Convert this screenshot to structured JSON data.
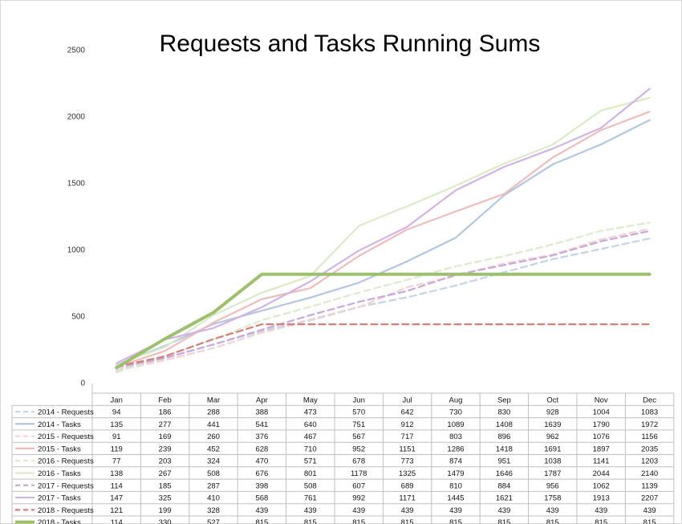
{
  "chart_data": {
    "type": "line",
    "title": "Requests and Tasks Running Sums",
    "categories": [
      "Jan",
      "Feb",
      "Mar",
      "Apr",
      "May",
      "Jun",
      "Jul",
      "Aug",
      "Sep",
      "Oct",
      "Nov",
      "Dec"
    ],
    "ylim": [
      0,
      2500
    ],
    "yticks": [
      0,
      500,
      1000,
      1500,
      2000,
      2500
    ],
    "grid": false,
    "legend": "data table below chart",
    "series": [
      {
        "name": "2014 - Requests",
        "values": [
          94,
          186,
          288,
          388,
          473,
          570,
          642,
          730,
          830,
          928,
          1004,
          1083
        ],
        "color": "#c5d3e6",
        "dash": true,
        "bold": false
      },
      {
        "name": "2014 - Tasks",
        "values": [
          135,
          277,
          441,
          541,
          640,
          751,
          912,
          1089,
          1408,
          1639,
          1790,
          1972
        ],
        "color": "#b4c6e0",
        "dash": false,
        "bold": false
      },
      {
        "name": "2015 - Requests",
        "values": [
          91,
          169,
          260,
          376,
          467,
          567,
          717,
          803,
          896,
          962,
          1076,
          1156
        ],
        "color": "#f2d2d2",
        "dash": true,
        "bold": false
      },
      {
        "name": "2015 - Tasks",
        "values": [
          119,
          239,
          452,
          628,
          710,
          952,
          1151,
          1286,
          1418,
          1691,
          1897,
          2035
        ],
        "color": "#efbcbc",
        "dash": false,
        "bold": false
      },
      {
        "name": "2016 - Requests",
        "values": [
          77,
          203,
          324,
          470,
          571,
          678,
          773,
          874,
          951,
          1038,
          1141,
          1203
        ],
        "color": "#dcebcb",
        "dash": true,
        "bold": false
      },
      {
        "name": "2016 - Tasks",
        "values": [
          138,
          267,
          508,
          676,
          801,
          1178,
          1325,
          1479,
          1646,
          1787,
          2044,
          2140
        ],
        "color": "#dbebc6",
        "dash": false,
        "bold": false
      },
      {
        "name": "2017 - Requests",
        "values": [
          114,
          185,
          287,
          398,
          508,
          607,
          689,
          810,
          884,
          956,
          1062,
          1139
        ],
        "color": "#caa8dc",
        "dash": true,
        "bold": false
      },
      {
        "name": "2017 - Tasks",
        "values": [
          147,
          325,
          410,
          568,
          761,
          992,
          1171,
          1445,
          1621,
          1758,
          1913,
          2207
        ],
        "color": "#d1b4e3",
        "dash": false,
        "bold": false
      },
      {
        "name": "2018 - Requests",
        "values": [
          121,
          199,
          328,
          439,
          439,
          439,
          439,
          439,
          439,
          439,
          439,
          439
        ],
        "color": "#d47f7a",
        "dash": true,
        "bold": false
      },
      {
        "name": "2018 - Tasks",
        "values": [
          114,
          330,
          527,
          815,
          815,
          815,
          815,
          815,
          815,
          815,
          815,
          815
        ],
        "color": "#9dc06e",
        "dash": false,
        "bold": true
      }
    ]
  }
}
